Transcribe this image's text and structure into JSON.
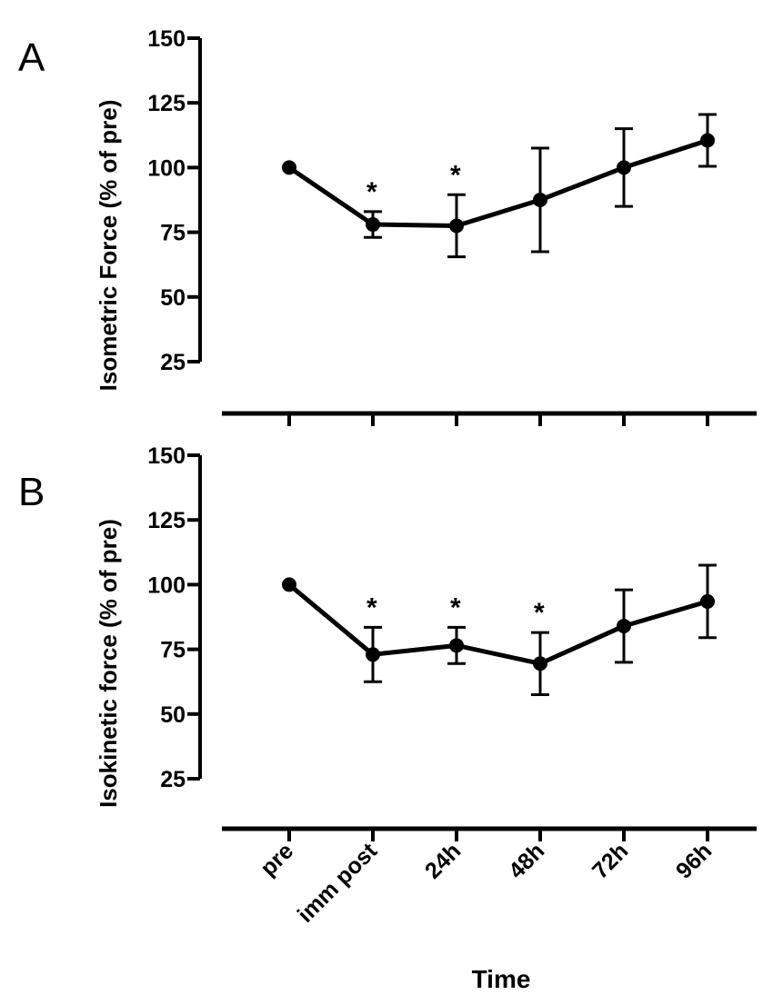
{
  "chart_data": [
    {
      "type": "line",
      "panel_label": "A",
      "ylabel": "Isometric Force (% of pre)",
      "xlabel": "",
      "ylim": [
        25,
        150
      ],
      "yticks": [
        "25",
        "50",
        "75",
        "100",
        "125",
        "150"
      ],
      "categories": [
        "pre",
        "imm post",
        "24h",
        "48h",
        "72h",
        "96h"
      ],
      "values": [
        100,
        78,
        77.5,
        87.5,
        100,
        110.5
      ],
      "error": [
        0,
        5,
        12,
        20,
        15,
        10
      ],
      "significance_marker": "*",
      "significant": [
        false,
        true,
        true,
        false,
        false,
        false
      ]
    },
    {
      "type": "line",
      "panel_label": "B",
      "ylabel": "Isokinetic force  (% of pre)",
      "xlabel": "Time",
      "ylim": [
        25,
        150
      ],
      "yticks": [
        "25",
        "50",
        "75",
        "100",
        "125",
        "150"
      ],
      "categories": [
        "pre",
        "imm post",
        "24h",
        "48h",
        "72h",
        "96h"
      ],
      "values": [
        100,
        73,
        76.5,
        69.5,
        84,
        93.5
      ],
      "error": [
        0,
        10.5,
        7,
        12,
        14,
        14
      ],
      "significance_marker": "*",
      "significant": [
        false,
        true,
        true,
        true,
        false,
        false
      ]
    }
  ],
  "colors": {
    "line": "#000000",
    "background": "#ffffff"
  }
}
